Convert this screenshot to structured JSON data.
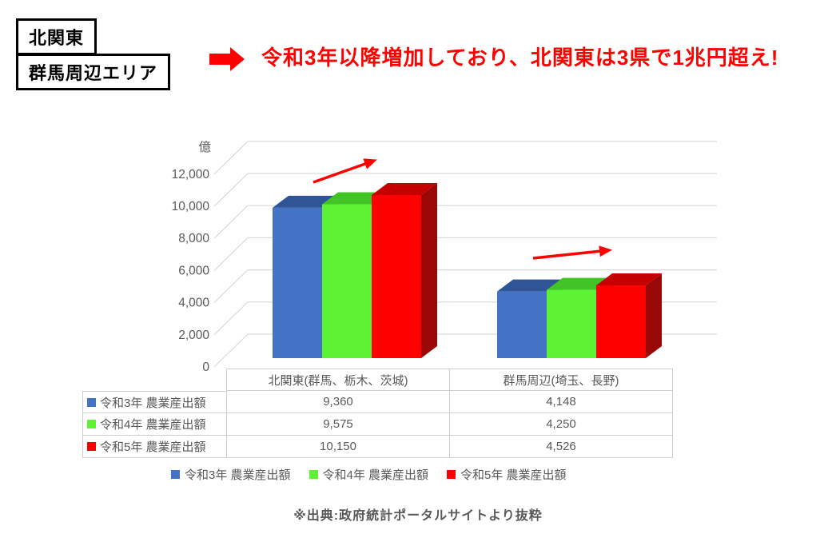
{
  "tags": [
    {
      "label": "北関東"
    },
    {
      "label": "群馬周辺エリア"
    }
  ],
  "arrow_icon": {
    "name": "right-block-arrow",
    "color": "#FF0000"
  },
  "headline": {
    "text": "令和3年以降増加しており、北関東は3県で1兆円超え!",
    "color": "#FF0000"
  },
  "chart_data": {
    "type": "bar",
    "projection": "3d",
    "title": "",
    "axis_unit_label": "億",
    "categories": [
      "北関東(群馬、栃木、茨城)",
      "群馬周辺(埼玉、長野)"
    ],
    "series": [
      {
        "name": "令和3年 農業産出額",
        "values": [
          9360,
          4148
        ],
        "color": "#4472C4",
        "color_top": "#2F5597",
        "color_side": "#24406B"
      },
      {
        "name": "令和4年 農業産出額",
        "values": [
          9575,
          4250
        ],
        "color": "#5EF235",
        "color_top": "#42C427",
        "color_side": "#36A41C"
      },
      {
        "name": "令和5年 農業産出額",
        "values": [
          10150,
          4526
        ],
        "color": "#FE0000",
        "color_top": "#C40000",
        "color_side": "#9A0707"
      }
    ],
    "ylim": [
      0,
      12000
    ],
    "ytick_step": 2000,
    "yticks": [
      "0",
      "2,000",
      "4,000",
      "6,000",
      "8,000",
      "10,000",
      "12,000"
    ],
    "grid": true,
    "gridline_color": "#D9D9D9",
    "legend_position": "bottom",
    "annotations": [
      {
        "type": "trend-arrow",
        "target": "北関東(群馬、栃木、茨城)",
        "color": "#FF0000"
      },
      {
        "type": "trend-arrow",
        "target": "群馬周辺(埼玉、長野)",
        "color": "#FF0000"
      }
    ]
  },
  "table": {
    "columns": [
      "",
      "北関東(群馬、栃木、茨城)",
      "群馬周辺(埼玉、長野)"
    ],
    "rows": [
      {
        "label": "令和3年 農業産出額",
        "swatch": "#4472C4",
        "values": [
          "9,360",
          "4,148"
        ]
      },
      {
        "label": "令和4年 農業産出額",
        "swatch": "#5EF235",
        "values": [
          "9,575",
          "4,250"
        ]
      },
      {
        "label": "令和5年 農業産出額",
        "swatch": "#FE0000",
        "values": [
          "10,150",
          "4,526"
        ]
      }
    ]
  },
  "footer": {
    "text": "※出典:政府統計ポータルサイトより抜粋"
  }
}
